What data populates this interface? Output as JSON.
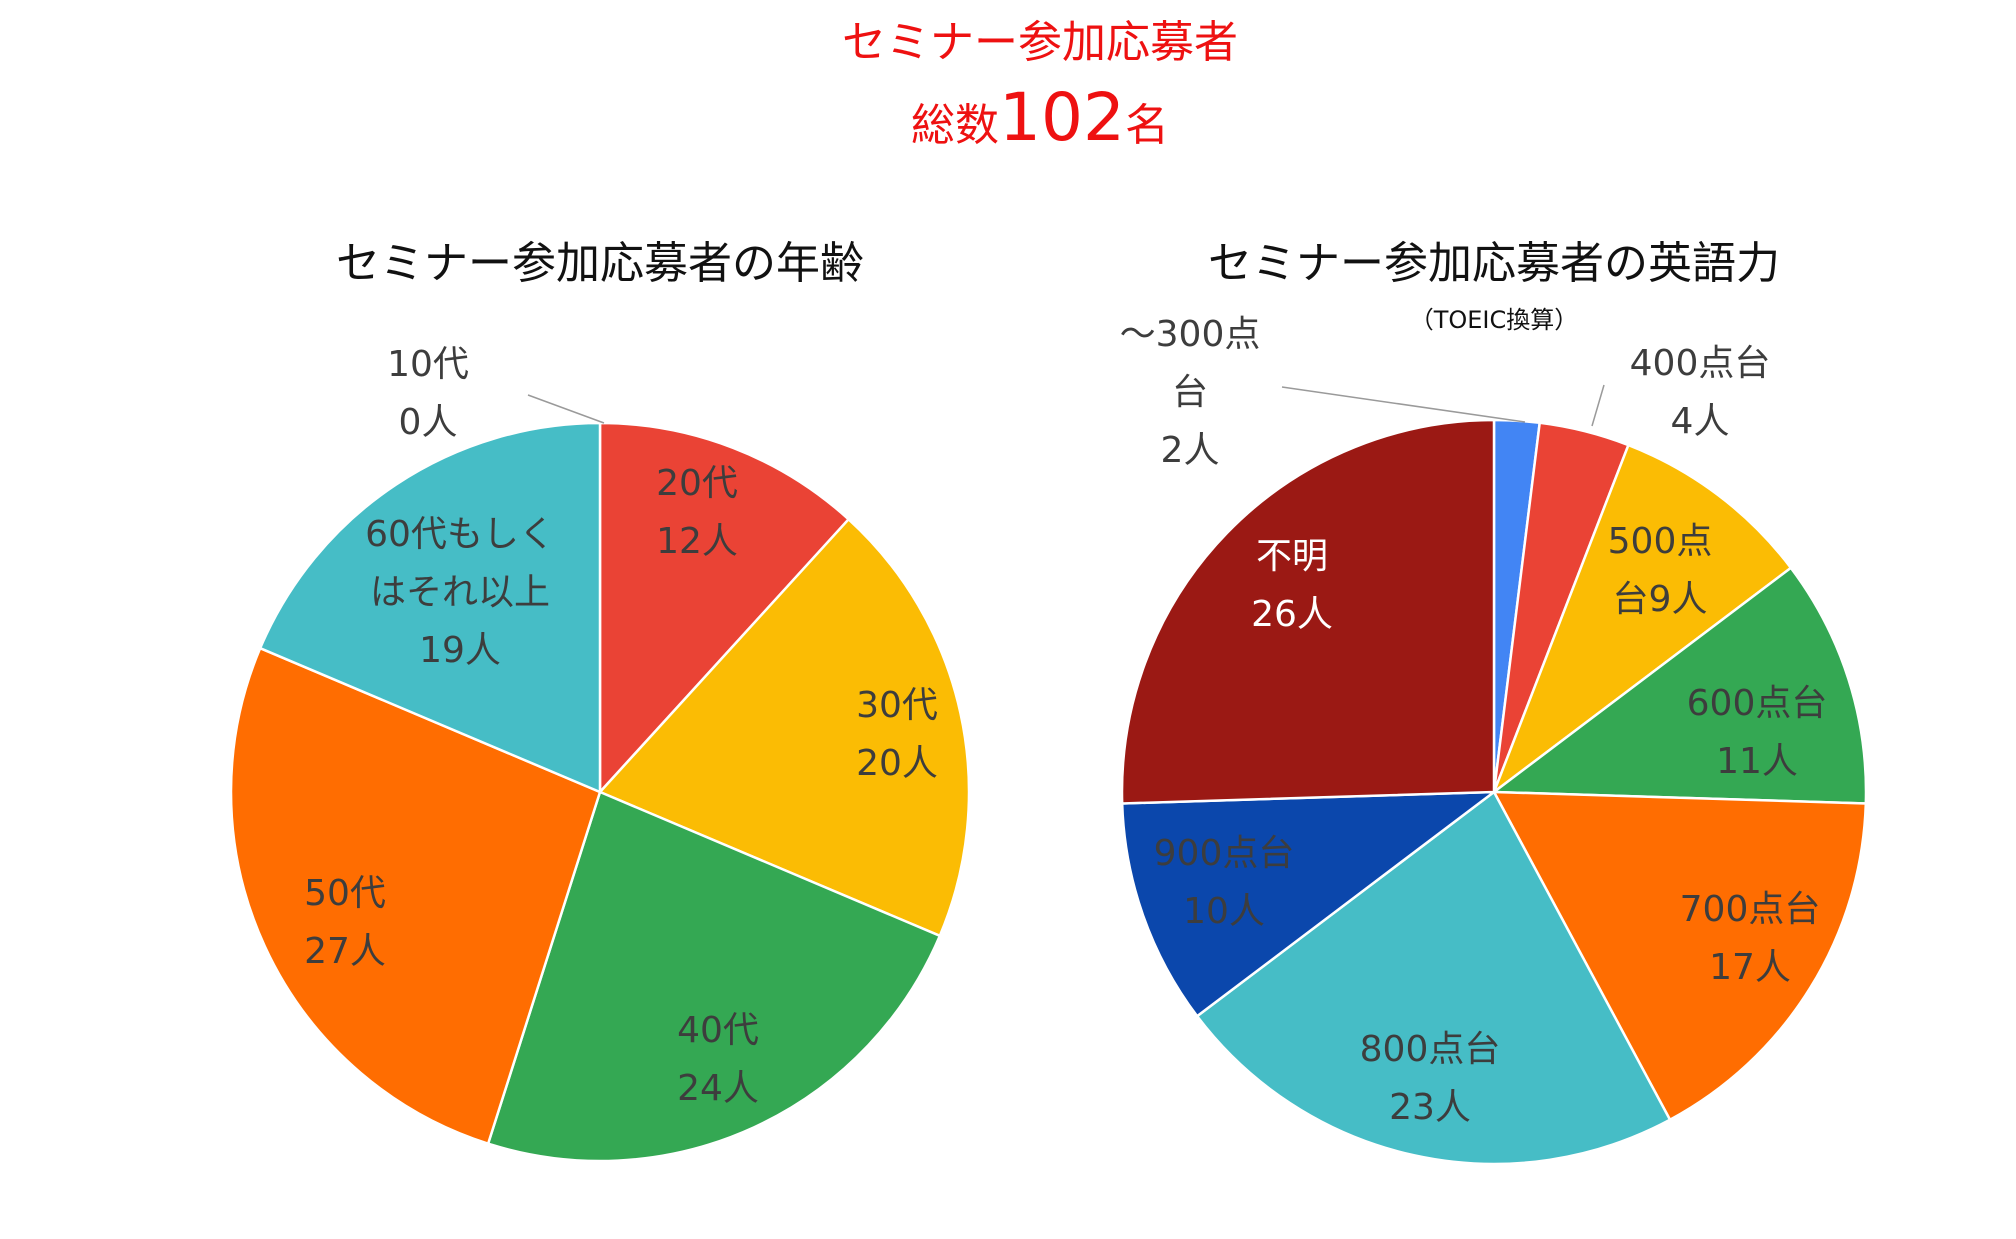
{
  "header": {
    "line1": "セミナー参加応募者",
    "line2_prefix": "総数",
    "line2_number": "102",
    "line2_suffix": "名",
    "color": "#ee1111"
  },
  "chart_data": [
    {
      "type": "pie",
      "title": "セミナー参加応募者の年齢",
      "subtitle": "",
      "unit": "人",
      "slices": [
        {
          "label": [
            "10代"
          ],
          "value": 0,
          "color": "#4285f4"
        },
        {
          "label": [
            "20代"
          ],
          "value": 12,
          "color": "#ea4335"
        },
        {
          "label": [
            "30代"
          ],
          "value": 20,
          "color": "#fbbc04"
        },
        {
          "label": [
            "40代"
          ],
          "value": 24,
          "color": "#34a853"
        },
        {
          "label": [
            "50代"
          ],
          "value": 27,
          "color": "#ff6d01"
        },
        {
          "label": [
            "60代もしく",
            "はそれ以上"
          ],
          "value": 19,
          "color": "#46bdc6"
        }
      ]
    },
    {
      "type": "pie",
      "title": "セミナー参加応募者の英語力",
      "subtitle": "（TOEIC換算）",
      "unit": "人",
      "slices": [
        {
          "label": [
            "～300点",
            "台"
          ],
          "value": 2,
          "color": "#4285f4"
        },
        {
          "label": [
            "400点台"
          ],
          "value": 4,
          "color": "#ea4335"
        },
        {
          "label": [
            "500点",
            "台9人"
          ],
          "value": 9,
          "color": "#fbbc04",
          "merged_count": true
        },
        {
          "label": [
            "600点台"
          ],
          "value": 11,
          "color": "#34a853"
        },
        {
          "label": [
            "700点台"
          ],
          "value": 17,
          "color": "#ff6d01"
        },
        {
          "label": [
            "800点台"
          ],
          "value": 23,
          "color": "#46bdc6"
        },
        {
          "label": [
            "900点台"
          ],
          "value": 10,
          "color": "#0b47ac"
        },
        {
          "label": [
            "不明"
          ],
          "value": 26,
          "color": "#9b1914"
        }
      ]
    }
  ]
}
